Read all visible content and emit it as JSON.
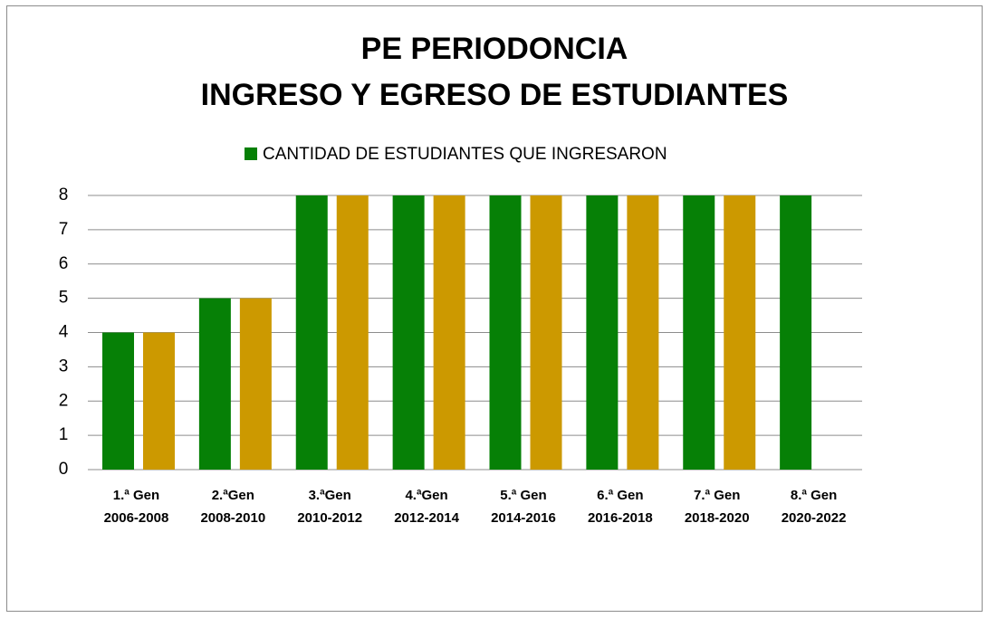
{
  "chart_data": {
    "type": "bar",
    "title": [
      "PE PERIODONCIA",
      "INGRESO Y EGRESO DE ESTUDIANTES"
    ],
    "categories": [
      [
        "1.ª Gen",
        "2006-2008"
      ],
      [
        "2.ªGen",
        "2008-2010"
      ],
      [
        "3.ªGen",
        "2010-2012"
      ],
      [
        "4.ªGen",
        "2012-2014"
      ],
      [
        "5.ª Gen",
        "2014-2016"
      ],
      [
        "6.ª Gen",
        "2016-2018"
      ],
      [
        "7.ª Gen",
        "2018-2020"
      ],
      [
        "8.ª Gen",
        "2020-2022"
      ]
    ],
    "series": [
      {
        "name": "CANTIDAD DE ESTUDIANTES QUE INGRESARON",
        "color": "#068006",
        "values": [
          4,
          5,
          8,
          8,
          8,
          8,
          8,
          8
        ]
      },
      {
        "color": "#cc9900",
        "values": [
          4,
          5,
          8,
          8,
          8,
          8,
          8,
          null
        ]
      }
    ],
    "ylim": [
      0,
      8
    ],
    "yticks": [
      0,
      1,
      2,
      3,
      4,
      5,
      6,
      7,
      8
    ],
    "grid": true,
    "legend": "top"
  }
}
